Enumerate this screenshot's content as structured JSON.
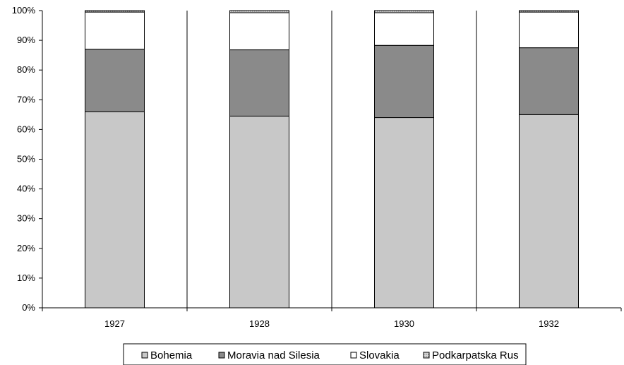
{
  "chart_data": {
    "type": "bar",
    "stacked": "percent",
    "categories": [
      "1927",
      "1928",
      "1930",
      "1932"
    ],
    "series": [
      {
        "name": "Bohemia",
        "values": [
          66,
          64.5,
          64,
          65
        ],
        "color": "#c8c8c8"
      },
      {
        "name": "Moravia nad Silesia",
        "values": [
          21,
          22.3,
          24.3,
          22.5
        ],
        "color": "#8a8a8a"
      },
      {
        "name": "Slovakia",
        "values": [
          12.5,
          12.5,
          11,
          12
        ],
        "color": "#ffffff"
      },
      {
        "name": "Podkarpatska Rus",
        "values": [
          0.5,
          0.7,
          0.7,
          0.5
        ],
        "color": "#b4b4b4"
      }
    ],
    "y_ticks": [
      "0%",
      "10%",
      "20%",
      "30%",
      "40%",
      "50%",
      "60%",
      "70%",
      "80%",
      "90%",
      "100%"
    ],
    "ylim": [
      0,
      100
    ],
    "title": "",
    "xlabel": "",
    "ylabel": "",
    "grid": false,
    "category_separators": true,
    "legend": "bottom"
  }
}
